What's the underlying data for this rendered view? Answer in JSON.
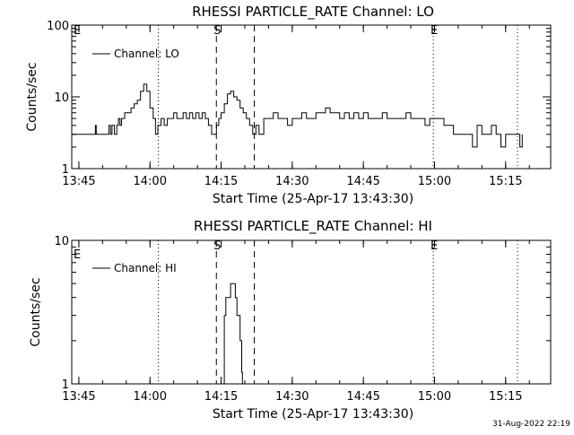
{
  "footer": {
    "timestamp": "31-Aug-2022 22:19"
  },
  "chart_data": [
    {
      "type": "line",
      "title": "RHESSI PARTICLE_RATE Channel: LO",
      "xlabel": "Start Time (25-Apr-17 13:43:30)",
      "ylabel": "Counts/sec",
      "yscale": "log",
      "ylim": [
        1,
        100
      ],
      "xlim": [
        "13:43:30",
        "15:24:30"
      ],
      "x_tick_labels": [
        "13:45",
        "14:00",
        "14:15",
        "14:30",
        "14:45",
        "15:00",
        "15:15"
      ],
      "y_tick_labels": [
        "1",
        "10",
        "100"
      ],
      "legend": {
        "position": "top-left",
        "entries": [
          "Channel: LO"
        ]
      },
      "vlines": [
        {
          "time": "14:01:45",
          "style": "dotted"
        },
        {
          "time": "14:14:00",
          "style": "dashed",
          "label": "S"
        },
        {
          "time": "14:22:00",
          "style": "dashed"
        },
        {
          "time": "14:59:45",
          "style": "dotted",
          "label": "E"
        },
        {
          "time": "15:17:30",
          "style": "dotted"
        }
      ],
      "corner_label": "E",
      "series": [
        {
          "name": "Channel: LO",
          "x": [
            "13:43:30",
            "13:48:00",
            "13:48:30",
            "13:48:40",
            "13:49:00",
            "13:51:00",
            "13:51:20",
            "13:51:40",
            "13:52:00",
            "13:52:30",
            "13:53:00",
            "13:53:20",
            "13:53:40",
            "13:54:00",
            "13:54:40",
            "13:55:20",
            "13:56:00",
            "13:56:40",
            "13:57:20",
            "13:58:00",
            "13:58:40",
            "13:59:20",
            "14:00:00",
            "14:00:40",
            "14:01:10",
            "14:01:40",
            "14:02:20",
            "14:03:00",
            "14:03:40",
            "14:04:20",
            "14:05:00",
            "14:05:40",
            "14:06:20",
            "14:07:00",
            "14:07:40",
            "14:08:20",
            "14:09:00",
            "14:09:40",
            "14:10:20",
            "14:11:00",
            "14:11:40",
            "14:12:20",
            "14:13:00",
            "14:13:30",
            "14:14:00",
            "14:14:30",
            "14:15:00",
            "14:15:40",
            "14:16:20",
            "14:17:00",
            "14:17:40",
            "14:18:20",
            "14:19:00",
            "14:19:40",
            "14:20:20",
            "14:21:00",
            "14:21:40",
            "14:22:20",
            "14:23:00",
            "14:24:00",
            "14:25:00",
            "14:26:00",
            "14:27:00",
            "14:28:00",
            "14:29:00",
            "14:30:00",
            "14:31:00",
            "14:32:00",
            "14:33:00",
            "14:34:00",
            "14:35:00",
            "14:36:00",
            "14:37:00",
            "14:38:00",
            "14:39:00",
            "14:40:00",
            "14:41:00",
            "14:42:00",
            "14:43:00",
            "14:44:00",
            "14:45:00",
            "14:46:00",
            "14:47:00",
            "14:48:00",
            "14:49:00",
            "14:50:00",
            "14:51:00",
            "14:52:00",
            "14:53:00",
            "14:54:00",
            "14:55:00",
            "14:56:00",
            "14:57:00",
            "14:58:00",
            "14:59:00",
            "15:00:00",
            "15:01:00",
            "15:02:00",
            "15:03:00",
            "15:04:00",
            "15:05:00",
            "15:06:00",
            "15:07:00",
            "15:08:00",
            "15:09:00",
            "15:10:00",
            "15:11:00",
            "15:12:00",
            "15:13:00",
            "15:14:00",
            "15:15:00",
            "15:16:00",
            "15:17:00",
            "15:18:00",
            "15:18:30"
          ],
          "values": [
            3,
            3,
            4,
            3,
            3,
            3,
            4,
            3,
            4,
            3,
            4,
            5,
            4,
            5,
            6,
            6,
            7,
            8,
            9,
            12,
            15,
            12,
            7,
            5,
            3,
            4,
            5,
            4,
            5,
            5,
            6,
            5,
            5,
            6,
            5,
            6,
            5,
            6,
            5,
            6,
            5,
            4,
            3,
            3,
            4,
            5,
            6,
            8,
            11,
            12,
            10,
            9,
            7,
            6,
            5,
            4,
            3,
            4,
            3,
            5,
            5,
            6,
            5,
            5,
            4,
            5,
            5,
            6,
            5,
            5,
            6,
            6,
            7,
            6,
            6,
            5,
            6,
            5,
            6,
            5,
            6,
            5,
            5,
            5,
            6,
            5,
            5,
            5,
            5,
            6,
            5,
            5,
            5,
            4,
            5,
            5,
            5,
            4,
            4,
            3,
            3,
            3,
            3,
            2,
            4,
            3,
            3,
            4,
            3,
            2,
            3,
            3,
            3,
            2,
            3
          ]
        }
      ]
    },
    {
      "type": "line",
      "title": "RHESSI PARTICLE_RATE Channel: HI",
      "xlabel": "Start Time (25-Apr-17 13:43:30)",
      "ylabel": "Counts/sec",
      "yscale": "log",
      "ylim": [
        1,
        10
      ],
      "xlim": [
        "13:43:30",
        "15:24:30"
      ],
      "x_tick_labels": [
        "13:45",
        "14:00",
        "14:15",
        "14:30",
        "14:45",
        "15:00",
        "15:15"
      ],
      "y_tick_labels": [
        "1",
        "10"
      ],
      "legend": {
        "position": "top-left",
        "entries": [
          "Channel: HI"
        ]
      },
      "vlines": [
        {
          "time": "14:01:45",
          "style": "dotted"
        },
        {
          "time": "14:14:00",
          "style": "dashed",
          "label": "S"
        },
        {
          "time": "14:22:00",
          "style": "dashed"
        },
        {
          "time": "14:59:45",
          "style": "dotted",
          "label": "E"
        },
        {
          "time": "15:17:30",
          "style": "dotted"
        }
      ],
      "corner_label": "E",
      "series": [
        {
          "name": "Channel: HI",
          "x": [
            "14:15:30",
            "14:15:40",
            "14:16:00",
            "14:16:20",
            "14:16:40",
            "14:17:00",
            "14:17:20",
            "14:17:40",
            "14:18:00",
            "14:18:20",
            "14:18:40",
            "14:19:00",
            "14:19:20",
            "14:19:30"
          ],
          "values": [
            0.9,
            3,
            4,
            4,
            4,
            5,
            5,
            5,
            4,
            3,
            3,
            2,
            1.2,
            0.9
          ]
        }
      ]
    }
  ]
}
